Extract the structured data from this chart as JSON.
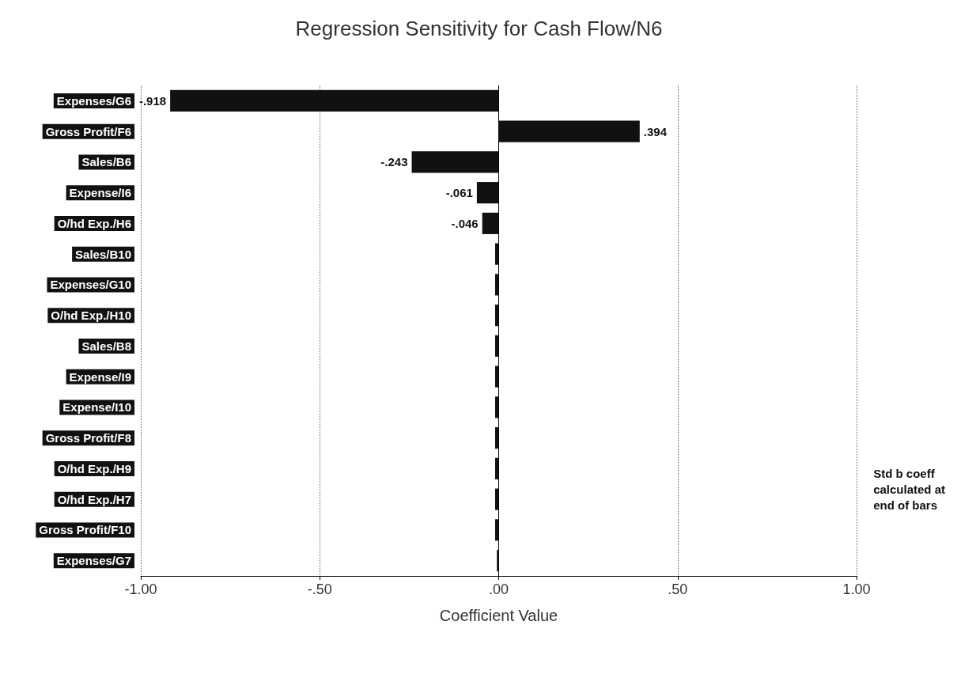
{
  "chart_data": {
    "type": "bar",
    "orientation": "horizontal",
    "title": "Regression Sensitivity for Cash Flow/N6",
    "xlabel": "Coefficient Value",
    "categories": [
      "Expenses/G6",
      "Gross Profit/F6",
      "Sales/B6",
      "Expense/I6",
      "O/hd Exp./H6",
      "Sales/B10",
      "Expenses/G10",
      "O/hd Exp./H10",
      "Sales/B8",
      "Expense/I9",
      "Expense/I10",
      "Gross Profit/F8",
      "O/hd Exp./H9",
      "O/hd Exp./H7",
      "Gross Profit/F10",
      "Expenses/G7"
    ],
    "values": [
      -0.918,
      0.394,
      -0.243,
      -0.061,
      -0.046,
      -0.01,
      -0.01,
      -0.01,
      -0.01,
      -0.01,
      -0.01,
      -0.01,
      -0.01,
      -0.01,
      -0.01,
      -0.005
    ],
    "value_labels": [
      "-.918",
      ".394",
      "-.243",
      "-.061",
      "-.046",
      null,
      null,
      null,
      null,
      null,
      null,
      null,
      null,
      null,
      null,
      null
    ],
    "color": "#111111",
    "xlim": [
      -1,
      1
    ],
    "xticks": [
      {
        "value": -1,
        "label": "-1.00"
      },
      {
        "value": -0.5,
        "label": "-.50"
      },
      {
        "value": 0,
        "label": ".00"
      },
      {
        "value": 0.5,
        "label": ".50"
      },
      {
        "value": 1,
        "label": "1.00"
      }
    ],
    "grid": "x",
    "annotations": [
      "Std b coeff\ncalculated at\nend of bars"
    ]
  }
}
